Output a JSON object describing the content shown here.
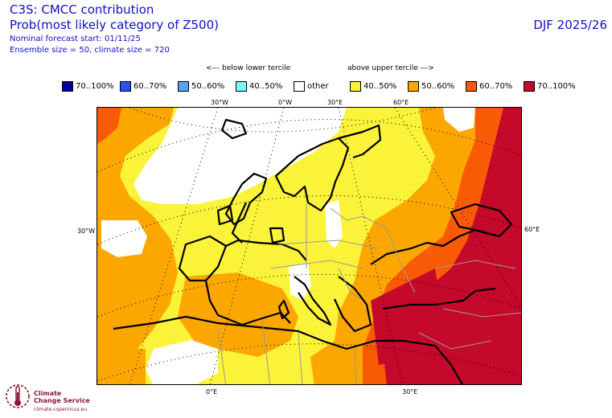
{
  "header": {
    "line1": "C3S: CMCC contribution",
    "line2": "Prob(most likely category of Z500)",
    "line3": "Nominal forecast start: 01/11/25",
    "line4": "Ensemble size = 50, climate size = 720",
    "season": "DJF 2025/26"
  },
  "legend": {
    "below_label": "<--- below lower tercile",
    "above_label": "above upper tercile --->",
    "items": [
      {
        "label": "70..100%",
        "color": "#00009a"
      },
      {
        "label": "60..70%",
        "color": "#2a52f0"
      },
      {
        "label": "50..60%",
        "color": "#5aa0f0"
      },
      {
        "label": "40..50%",
        "color": "#7af7f7"
      },
      {
        "label": "other",
        "color": "#ffffff"
      },
      {
        "label": "40..50%",
        "color": "#fbf23a"
      },
      {
        "label": "50..60%",
        "color": "#fba700"
      },
      {
        "label": "60..70%",
        "color": "#f85a06"
      },
      {
        "label": "70..100%",
        "color": "#c4092b"
      }
    ]
  },
  "map": {
    "top_labels": [
      "30°W",
      "0°W",
      "30°E",
      "60°E"
    ],
    "left_label": "30°W",
    "right_label": "60°E",
    "bottom_labels": [
      "0°E",
      "30°E"
    ]
  },
  "logo": {
    "name_line1": "Climate",
    "name_line2": "Change Service",
    "url": "climate.copernicus.eu",
    "color": "#8b1a33"
  }
}
